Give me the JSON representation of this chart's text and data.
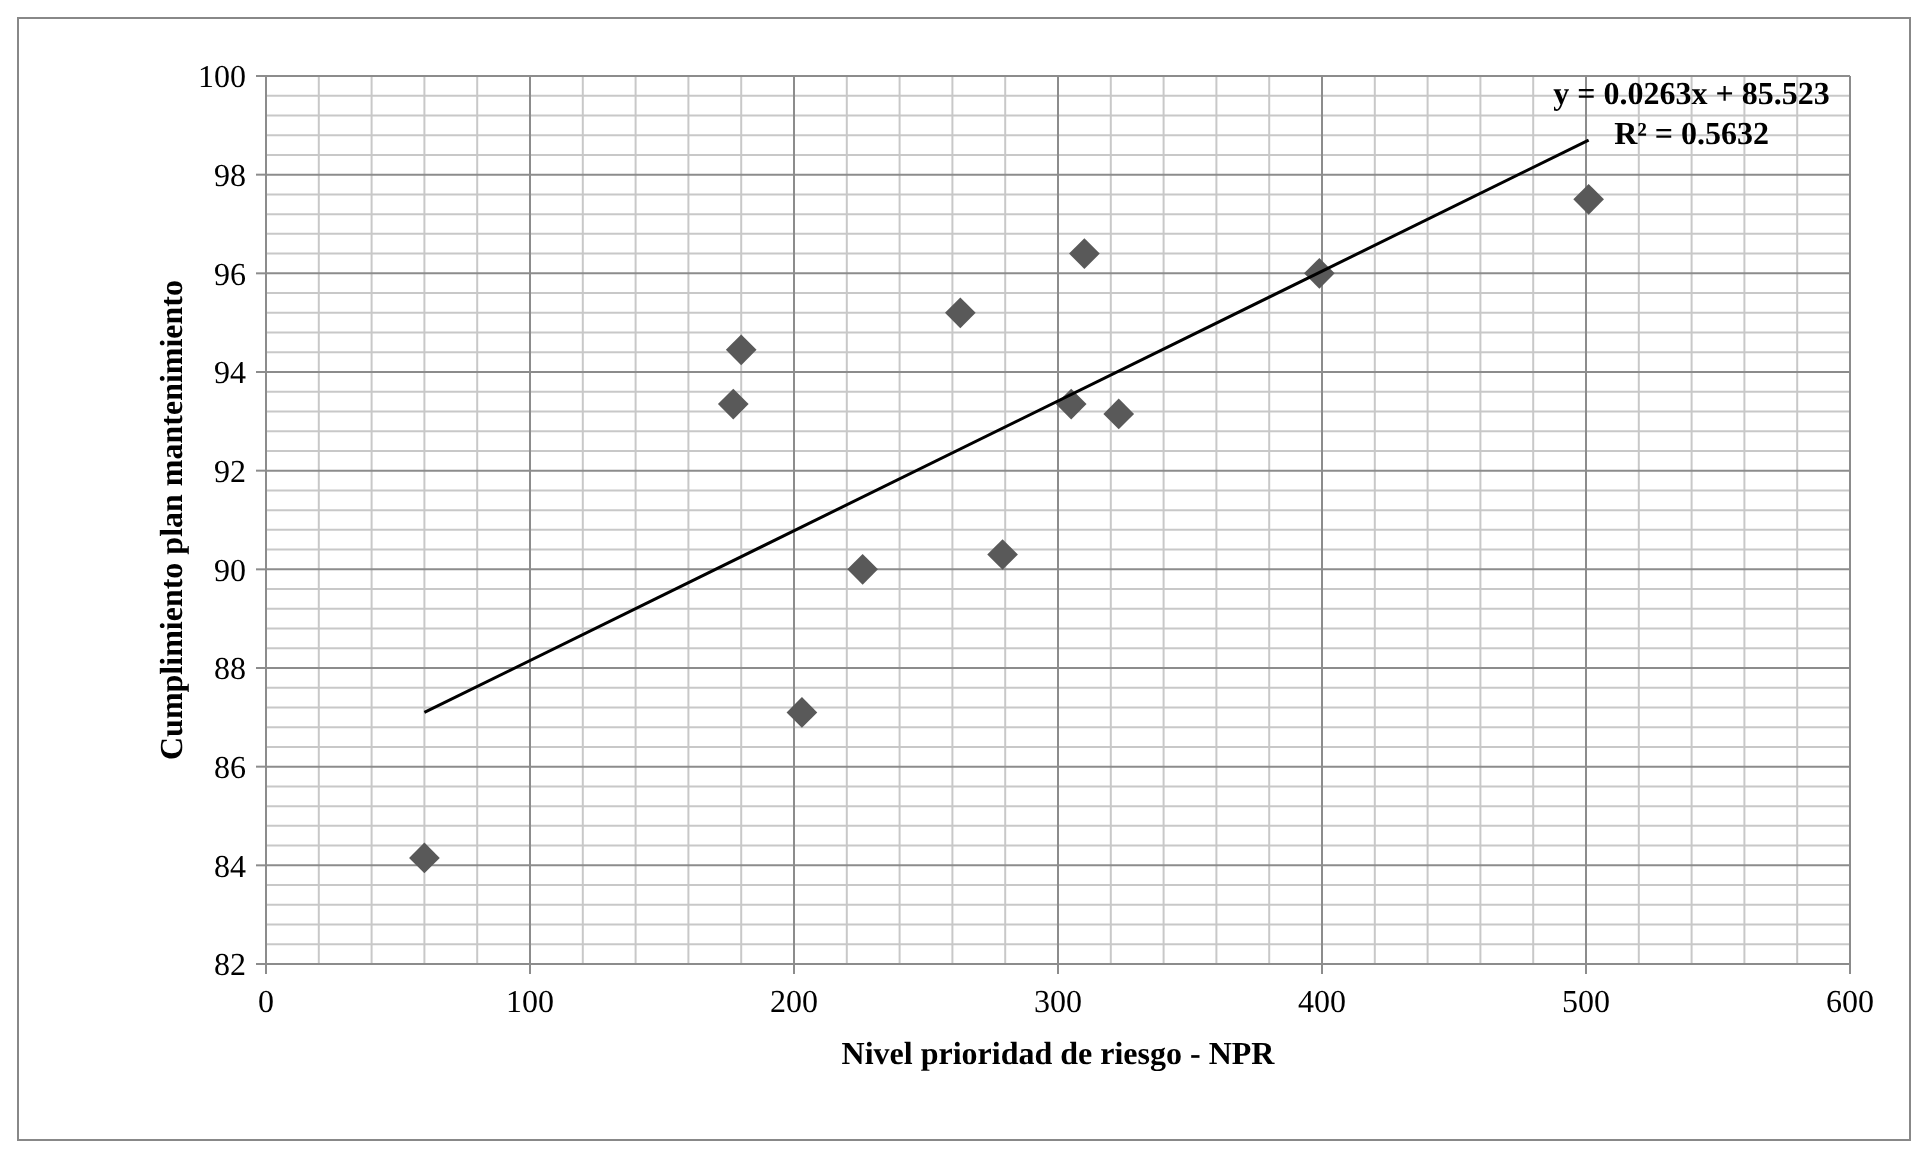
{
  "chart_data": {
    "type": "scatter",
    "xlabel": "Nivel prioridad de riesgo - NPR",
    "ylabel": "Cumplimiento plan mantenimiento",
    "xlim": [
      0,
      600
    ],
    "xticks": [
      0,
      100,
      200,
      300,
      400,
      500,
      600
    ],
    "ylim": [
      82,
      100
    ],
    "yticks": [
      82,
      84,
      86,
      88,
      90,
      92,
      94,
      96,
      98,
      100
    ],
    "grid": true,
    "marker": "diamond",
    "series": [
      {
        "color": "#595959",
        "x": [
          60,
          177,
          180,
          203,
          226,
          263,
          279,
          305,
          310,
          323,
          399,
          501
        ],
        "values": [
          84.15,
          93.35,
          94.45,
          87.1,
          90.0,
          95.2,
          90.3,
          93.35,
          96.4,
          93.15,
          96.0,
          97.5
        ]
      },
      {
        "type": "line",
        "color": "#000000",
        "marker": "none",
        "x": [
          60,
          501
        ],
        "values": [
          87.1,
          98.7
        ]
      }
    ],
    "annotations": [
      "y = 0.0263x + 85.523",
      "R² = 0.5632"
    ]
  }
}
